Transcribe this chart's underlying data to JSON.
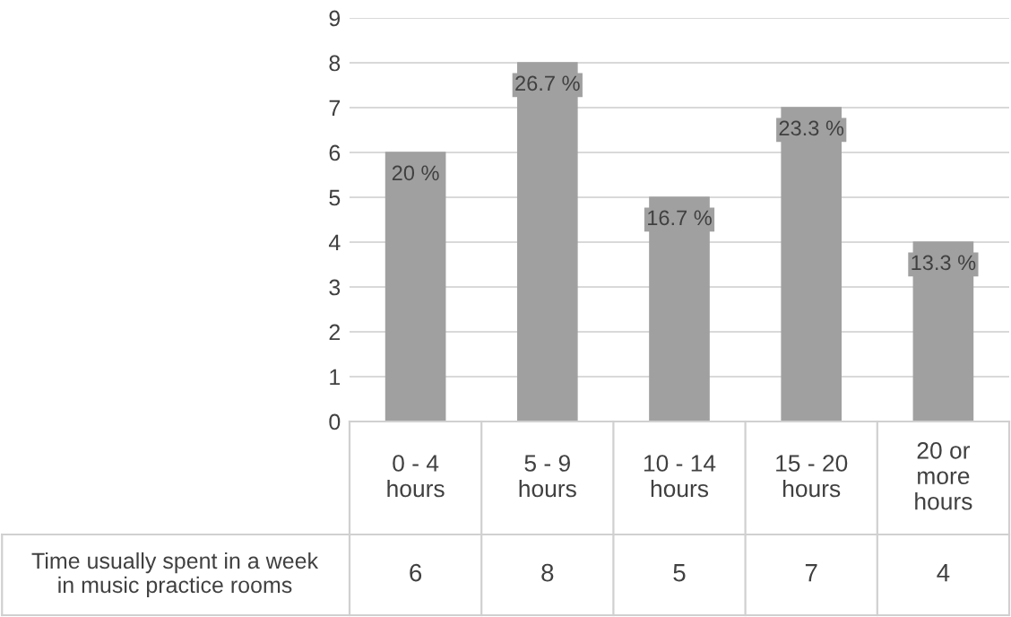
{
  "chart_data": {
    "type": "bar",
    "categories": [
      "0 - 4 hours",
      "5 - 9 hours",
      "10 - 14 hours",
      "15 - 20 hours",
      "20 or more hours"
    ],
    "series": [
      {
        "name": "Time usually spent in a week in music practice rooms",
        "color": "#a0a0a0",
        "values": [
          6,
          8,
          5,
          7,
          4
        ],
        "value_labels": [
          "6",
          "8",
          "5",
          "7",
          "4"
        ]
      }
    ],
    "annotations": [
      {
        "text": "20 %",
        "x": "0 - 4 hours",
        "y": 6
      },
      {
        "text": "26.7 %",
        "x": "5 - 9 hours",
        "y": 8
      },
      {
        "text": "16.7 %",
        "x": "10 - 14 hours",
        "y": 5
      },
      {
        "text": "23.3 %",
        "x": "15 - 20 hours",
        "y": 7
      },
      {
        "text": "13.3 %",
        "x": "20 or more hours",
        "y": 4
      }
    ],
    "ylim": [
      0,
      9
    ],
    "yticks": [
      0,
      1,
      2,
      3,
      4,
      5,
      6,
      7,
      8,
      9
    ],
    "grid": "y"
  }
}
